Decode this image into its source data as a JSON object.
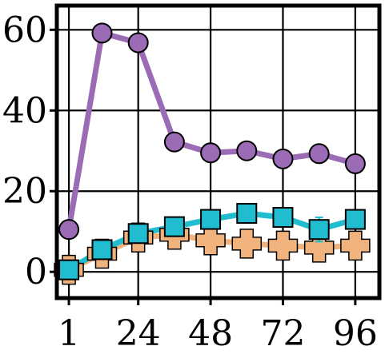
{
  "chart_data": {
    "type": "line",
    "title": "",
    "xlabel": "",
    "ylabel": "",
    "x": [
      1,
      12,
      24,
      36,
      48,
      60,
      72,
      84,
      96
    ],
    "xticks": [
      {
        "value": 1,
        "label": "1"
      },
      {
        "value": 24,
        "label": "24"
      },
      {
        "value": 48,
        "label": "48"
      },
      {
        "value": 72,
        "label": "72"
      },
      {
        "value": 96,
        "label": "96"
      }
    ],
    "yticks": [
      {
        "value": 0,
        "label": "0"
      },
      {
        "value": 20,
        "label": "20"
      },
      {
        "value": 40,
        "label": "40"
      },
      {
        "value": 60,
        "label": "60"
      }
    ],
    "xlim": [
      -3,
      104
    ],
    "ylim": [
      -6.5,
      66
    ],
    "grid": true,
    "series": [
      {
        "marker": "circle",
        "color": "#9b6cb5",
        "values": [
          10.5,
          59.2,
          56.8,
          32.2,
          29.5,
          30.0,
          28.0,
          29.3,
          26.8
        ],
        "errors": [
          0.5,
          0.5,
          0.5,
          0.5,
          0.5,
          0.5,
          0.5,
          0.5,
          0.5
        ]
      },
      {
        "marker": "plus",
        "color": "#f0b37e",
        "values": [
          0.5,
          4.5,
          8.5,
          9.2,
          7.8,
          7.0,
          6.5,
          6.0,
          6.5
        ],
        "errors": [
          1.5,
          1.5,
          1.5,
          1.5,
          1.5,
          1.5,
          1.5,
          1.5,
          1.5
        ]
      },
      {
        "marker": "square",
        "color": "#22bcd0",
        "values": [
          0.5,
          5.5,
          9.5,
          11.2,
          13.0,
          14.5,
          13.5,
          10.5,
          13.0
        ],
        "errors": [
          0.5,
          0.5,
          0.5,
          0.8,
          0.8,
          0.8,
          0.8,
          3.0,
          1.0
        ]
      }
    ]
  }
}
